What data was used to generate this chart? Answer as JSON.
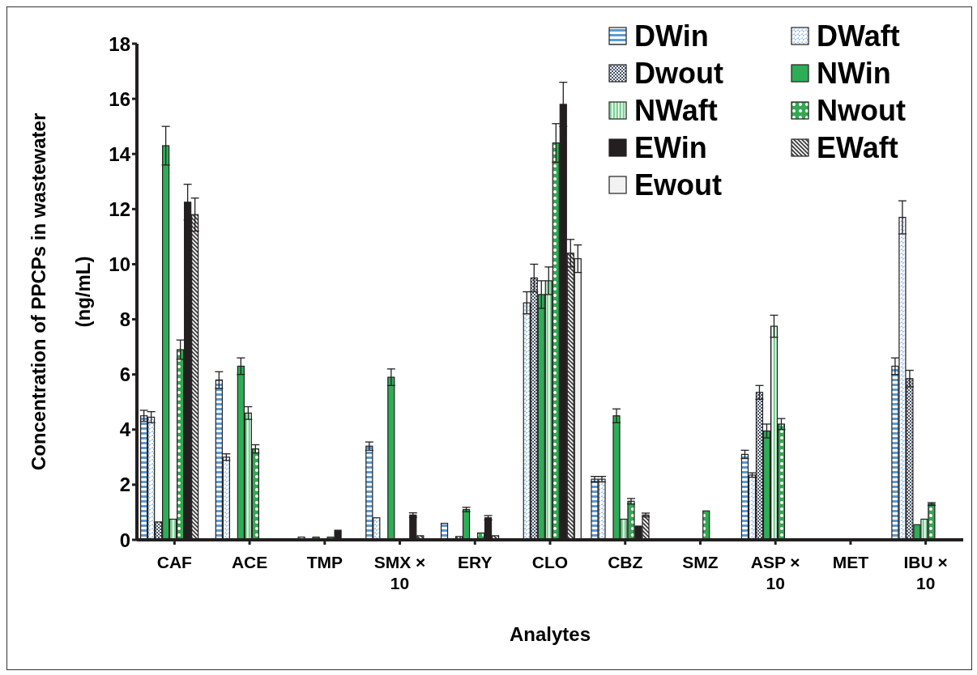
{
  "chart_data": {
    "type": "bar",
    "xlabel": "Analytes",
    "ylabel": "Concentration of PPCPs in wastewater (ng/mL)",
    "categories": [
      "CAF",
      "ACE",
      "TMP",
      "SMX × 10",
      "ERY",
      "CLO",
      "CBZ",
      "SMZ",
      "ASP × 10",
      "MET",
      "IBU × 10"
    ],
    "ylim": [
      0,
      18
    ],
    "yticks": [
      0,
      2,
      4,
      6,
      8,
      10,
      12,
      14,
      16,
      18
    ],
    "grid": false,
    "legend": "top right",
    "series": [
      {
        "name": "DWin",
        "color": "#5b9bd5",
        "values": [
          4.5,
          5.8,
          null,
          3.4,
          0.6,
          null,
          2.2,
          null,
          3.1,
          null,
          6.3
        ],
        "errors": [
          0.2,
          0.3,
          null,
          0.15,
          null,
          null,
          0.1,
          null,
          0.15,
          null,
          0.3
        ]
      },
      {
        "name": "DWaft",
        "color": "#9dc3e6",
        "values": [
          4.45,
          3.0,
          0.1,
          0.8,
          null,
          8.6,
          2.2,
          null,
          2.35,
          null,
          11.7
        ],
        "errors": [
          0.2,
          0.12,
          null,
          null,
          null,
          0.4,
          0.1,
          null,
          0.08,
          null,
          0.6
        ]
      },
      {
        "name": "Dwout",
        "color": "#44546a",
        "values": [
          0.65,
          null,
          null,
          null,
          0.12,
          9.5,
          null,
          null,
          5.35,
          null,
          5.85
        ],
        "errors": [
          null,
          null,
          null,
          null,
          null,
          0.5,
          null,
          null,
          0.25,
          null,
          0.3
        ]
      },
      {
        "name": "NWin",
        "color": "#2ead57",
        "values": [
          14.3,
          6.3,
          0.1,
          5.9,
          1.1,
          8.9,
          4.5,
          null,
          3.95,
          null,
          0.55
        ],
        "errors": [
          0.7,
          0.3,
          null,
          0.3,
          0.08,
          0.5,
          0.25,
          null,
          0.25,
          null,
          null
        ]
      },
      {
        "name": "NWaft",
        "color": "#7dd396",
        "values": [
          0.75,
          4.6,
          null,
          null,
          null,
          9.4,
          0.75,
          null,
          7.75,
          null,
          0.75
        ],
        "errors": [
          null,
          0.23,
          null,
          null,
          null,
          0.5,
          null,
          null,
          0.4,
          null,
          null
        ]
      },
      {
        "name": "Nwout",
        "color": "#33a852",
        "values": [
          6.9,
          3.3,
          0.1,
          null,
          0.25,
          14.4,
          1.4,
          1.05,
          4.2,
          null,
          1.3
        ],
        "errors": [
          0.35,
          0.15,
          null,
          null,
          null,
          0.7,
          0.1,
          null,
          0.2,
          null,
          0.05
        ]
      },
      {
        "name": "EWin",
        "color": "#231f20",
        "values": [
          12.25,
          null,
          0.35,
          0.9,
          0.8,
          15.8,
          0.5,
          null,
          null,
          null,
          null
        ],
        "errors": [
          0.65,
          null,
          null,
          0.08,
          0.08,
          0.8,
          null,
          null,
          null,
          null,
          null
        ]
      },
      {
        "name": "EWaft",
        "color": "#404040",
        "values": [
          11.8,
          null,
          null,
          0.15,
          0.15,
          10.4,
          0.9,
          null,
          null,
          null,
          null
        ],
        "errors": [
          0.6,
          null,
          null,
          null,
          null,
          0.5,
          0.07,
          null,
          null,
          null,
          null
        ]
      },
      {
        "name": "Ewout",
        "color": "#f2f2f2",
        "values": [
          null,
          null,
          null,
          null,
          null,
          10.2,
          null,
          null,
          null,
          null,
          null
        ],
        "errors": [
          null,
          null,
          null,
          null,
          null,
          0.5,
          null,
          null,
          null,
          null,
          null
        ]
      }
    ]
  }
}
